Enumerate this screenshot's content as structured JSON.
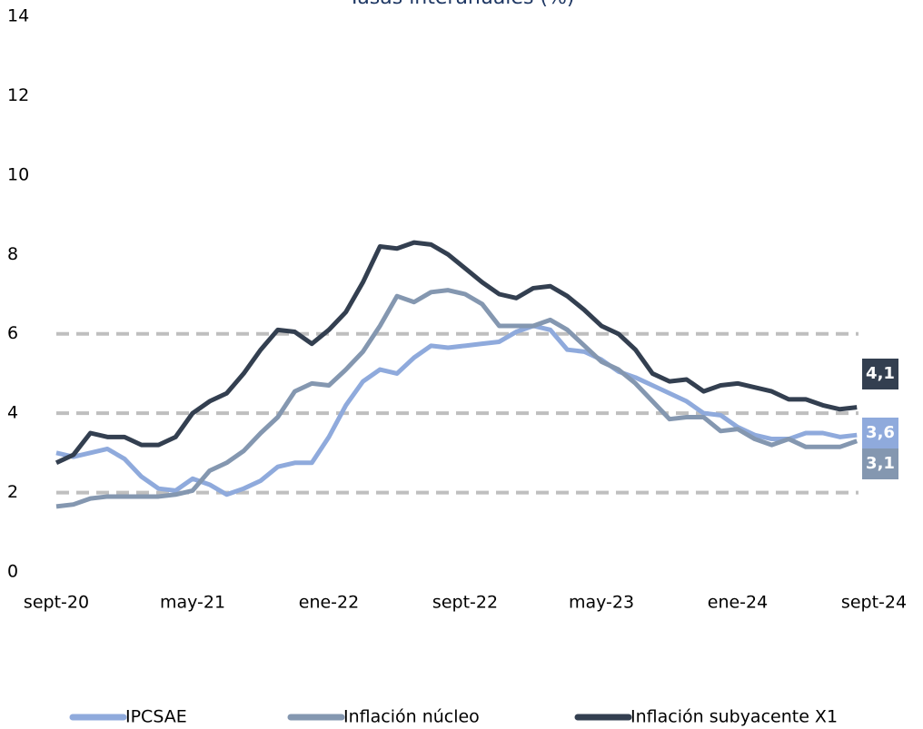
{
  "chart_data": {
    "type": "line",
    "title": "Tasas interanuales (%)",
    "categories": [
      "sept-20",
      null,
      null,
      null,
      null,
      null,
      null,
      null,
      "may-21",
      null,
      null,
      null,
      null,
      null,
      null,
      null,
      "ene-22",
      null,
      null,
      null,
      null,
      null,
      null,
      null,
      "sept-22",
      null,
      null,
      null,
      null,
      null,
      null,
      null,
      "may-23",
      null,
      null,
      null,
      null,
      null,
      null,
      null,
      "ene-24",
      null,
      null,
      null,
      null,
      null,
      null,
      null,
      "sept-24"
    ],
    "series": [
      {
        "name": "IPCSAE",
        "color": "#8faadc",
        "values": [
          3.0,
          2.9,
          3.0,
          3.1,
          2.85,
          2.4,
          2.1,
          2.05,
          2.35,
          2.2,
          1.95,
          2.1,
          2.3,
          2.65,
          2.75,
          2.75,
          3.4,
          4.2,
          4.8,
          5.1,
          5.0,
          5.4,
          5.7,
          5.65,
          5.7,
          5.75,
          5.8,
          6.05,
          6.2,
          6.1,
          5.6,
          5.55,
          5.35,
          5.05,
          4.9,
          4.7,
          4.5,
          4.3,
          4.0,
          3.95,
          3.65,
          3.45,
          3.35,
          3.35,
          3.5,
          3.5,
          3.4,
          3.45,
          null
        ]
      },
      {
        "name": "Inflación núcleo",
        "color": "#8497b0",
        "values": [
          1.65,
          1.7,
          1.85,
          1.9,
          1.9,
          1.9,
          1.9,
          1.95,
          2.05,
          2.55,
          2.75,
          3.05,
          3.5,
          3.9,
          4.55,
          4.75,
          4.7,
          5.1,
          5.55,
          6.2,
          6.95,
          6.8,
          7.05,
          7.1,
          7.0,
          6.75,
          6.2,
          6.2,
          6.2,
          6.35,
          6.1,
          5.7,
          5.3,
          5.1,
          4.75,
          4.3,
          3.85,
          3.9,
          3.9,
          3.55,
          3.6,
          3.35,
          3.2,
          3.35,
          3.15,
          3.15,
          3.15,
          3.3,
          null
        ]
      },
      {
        "name": "Inflación subyacente X1",
        "color": "#333f50",
        "values": [
          2.75,
          2.95,
          3.5,
          3.4,
          3.4,
          3.2,
          3.2,
          3.4,
          4.0,
          4.3,
          4.5,
          5.0,
          5.6,
          6.1,
          6.05,
          5.75,
          6.1,
          6.55,
          7.3,
          8.2,
          8.15,
          8.3,
          8.25,
          8.0,
          7.65,
          7.3,
          7.0,
          6.9,
          7.15,
          7.2,
          6.95,
          6.6,
          6.2,
          6.0,
          5.6,
          5.0,
          4.8,
          4.85,
          4.55,
          4.7,
          4.75,
          4.65,
          4.55,
          4.35,
          4.35,
          4.2,
          4.1,
          4.15,
          null
        ]
      }
    ],
    "ylim": [
      0,
      14
    ],
    "yticks": [
      0,
      2,
      4,
      6,
      8,
      10,
      12,
      14
    ],
    "reference_lines": [
      2,
      4,
      6
    ],
    "grid": false,
    "legend": "bottom",
    "annotations": [
      {
        "text": "4,1",
        "series": 2
      },
      {
        "text": "3,6",
        "series": 0
      },
      {
        "text": "3,1",
        "series": 1
      }
    ]
  }
}
